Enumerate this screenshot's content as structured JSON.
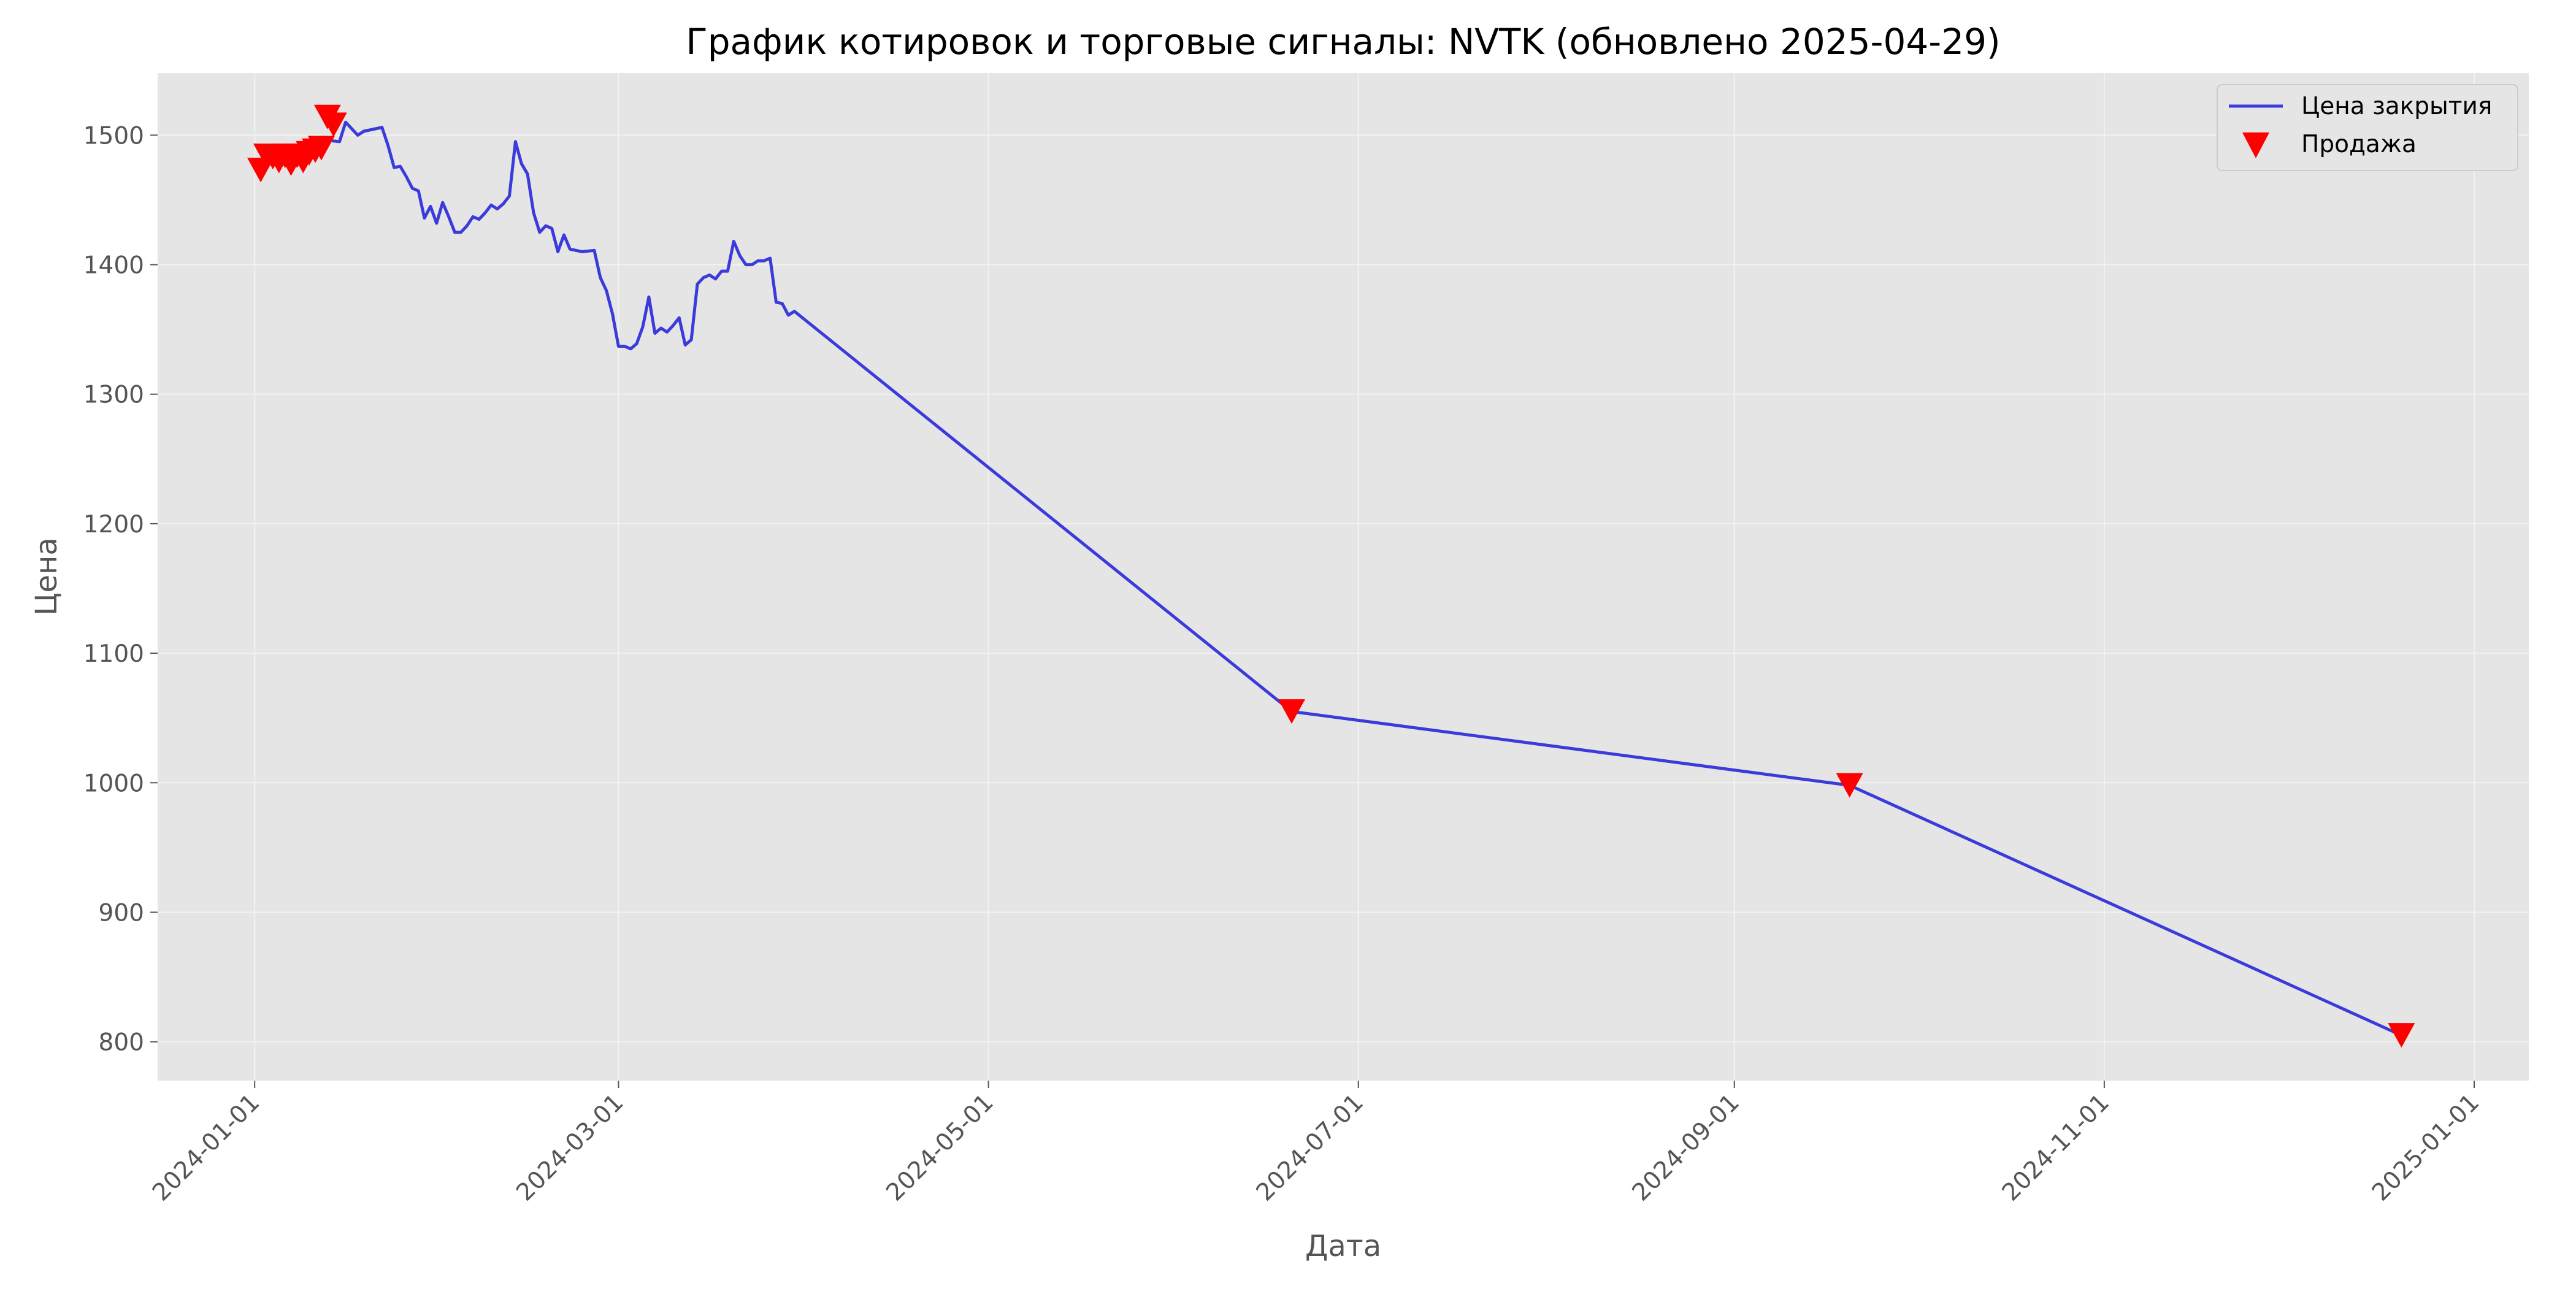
{
  "chart_data": {
    "type": "line",
    "title": "График котировок и торговые сигналы: NVTK (обновлено 2025-04-29)",
    "xlabel": "Дата",
    "ylabel": "Цена",
    "x_type": "date",
    "xlim": [
      "2023-12-16",
      "2025-01-10"
    ],
    "ylim": [
      770,
      1548
    ],
    "x_ticks": [
      "2024-01-01",
      "2024-03-01",
      "2024-05-01",
      "2024-07-01",
      "2024-09-01",
      "2024-11-01",
      "2025-01-01"
    ],
    "y_ticks": [
      800,
      900,
      1000,
      1100,
      1200,
      1300,
      1400,
      1500
    ],
    "grid": true,
    "legend_position": "top-right",
    "colors": {
      "line": "#3b3bdb",
      "marker": "#ff0000",
      "plot_bg": "#e5e5e5",
      "grid": "#f2f2f2"
    },
    "series": [
      {
        "name": "Цена закрытия",
        "kind": "line",
        "points": [
          [
            "2024-01-03",
            1480
          ],
          [
            "2024-01-04",
            1486
          ],
          [
            "2024-01-05",
            1483
          ],
          [
            "2024-01-08",
            1487
          ],
          [
            "2024-01-09",
            1482
          ],
          [
            "2024-01-10",
            1488
          ],
          [
            "2024-01-11",
            1484
          ],
          [
            "2024-01-12",
            1489
          ],
          [
            "2024-01-13",
            1496
          ],
          [
            "2024-01-15",
            1495
          ],
          [
            "2024-01-16",
            1510
          ],
          [
            "2024-01-17",
            1505
          ],
          [
            "2024-01-18",
            1500
          ],
          [
            "2024-01-19",
            1503
          ],
          [
            "2024-01-22",
            1506
          ],
          [
            "2024-01-23",
            1492
          ],
          [
            "2024-01-24",
            1475
          ],
          [
            "2024-01-25",
            1476
          ],
          [
            "2024-01-26",
            1468
          ],
          [
            "2024-01-27",
            1459
          ],
          [
            "2024-01-28",
            1457
          ],
          [
            "2024-01-29",
            1436
          ],
          [
            "2024-01-30",
            1445
          ],
          [
            "2024-01-31",
            1432
          ],
          [
            "2024-02-01",
            1448
          ],
          [
            "2024-02-02",
            1437
          ],
          [
            "2024-02-03",
            1425
          ],
          [
            "2024-02-04",
            1425
          ],
          [
            "2024-02-05",
            1430
          ],
          [
            "2024-02-06",
            1437
          ],
          [
            "2024-02-07",
            1435
          ],
          [
            "2024-02-08",
            1440
          ],
          [
            "2024-02-09",
            1446
          ],
          [
            "2024-02-10",
            1443
          ],
          [
            "2024-02-11",
            1447
          ],
          [
            "2024-02-12",
            1453
          ],
          [
            "2024-02-13",
            1495
          ],
          [
            "2024-02-14",
            1478
          ],
          [
            "2024-02-15",
            1470
          ],
          [
            "2024-02-16",
            1440
          ],
          [
            "2024-02-17",
            1425
          ],
          [
            "2024-02-18",
            1430
          ],
          [
            "2024-02-19",
            1428
          ],
          [
            "2024-02-20",
            1410
          ],
          [
            "2024-02-21",
            1423
          ],
          [
            "2024-02-22",
            1412
          ],
          [
            "2024-02-24",
            1410
          ],
          [
            "2024-02-26",
            1411
          ],
          [
            "2024-02-27",
            1390
          ],
          [
            "2024-02-28",
            1380
          ],
          [
            "2024-02-29",
            1362
          ],
          [
            "2024-03-01",
            1337
          ],
          [
            "2024-03-02",
            1337
          ],
          [
            "2024-03-03",
            1335
          ],
          [
            "2024-03-04",
            1339
          ],
          [
            "2024-03-05",
            1352
          ],
          [
            "2024-03-06",
            1375
          ],
          [
            "2024-03-07",
            1347
          ],
          [
            "2024-03-08",
            1351
          ],
          [
            "2024-03-09",
            1348
          ],
          [
            "2024-03-10",
            1353
          ],
          [
            "2024-03-11",
            1359
          ],
          [
            "2024-03-12",
            1338
          ],
          [
            "2024-03-13",
            1342
          ],
          [
            "2024-03-14",
            1385
          ],
          [
            "2024-03-15",
            1390
          ],
          [
            "2024-03-16",
            1392
          ],
          [
            "2024-03-17",
            1389
          ],
          [
            "2024-03-18",
            1395
          ],
          [
            "2024-03-19",
            1395
          ],
          [
            "2024-03-20",
            1418
          ],
          [
            "2024-03-21",
            1407
          ],
          [
            "2024-03-22",
            1400
          ],
          [
            "2024-03-23",
            1400
          ],
          [
            "2024-03-24",
            1403
          ],
          [
            "2024-03-25",
            1403
          ],
          [
            "2024-03-26",
            1405
          ],
          [
            "2024-03-27",
            1371
          ],
          [
            "2024-03-28",
            1370
          ],
          [
            "2024-03-29",
            1361
          ],
          [
            "2024-03-30",
            1364
          ],
          [
            "2024-06-20",
            1055
          ],
          [
            "2024-09-20",
            998
          ],
          [
            "2024-12-20",
            805
          ]
        ]
      },
      {
        "name": "Продажа",
        "kind": "marker",
        "points": [
          [
            "2024-01-02",
            1473
          ],
          [
            "2024-01-03",
            1484
          ],
          [
            "2024-01-04",
            1483
          ],
          [
            "2024-01-05",
            1480
          ],
          [
            "2024-01-06",
            1484
          ],
          [
            "2024-01-07",
            1478
          ],
          [
            "2024-01-08",
            1484
          ],
          [
            "2024-01-09",
            1480
          ],
          [
            "2024-01-10",
            1486
          ],
          [
            "2024-01-11",
            1488
          ],
          [
            "2024-01-12",
            1490
          ],
          [
            "2024-01-13",
            1514
          ],
          [
            "2024-01-14",
            1508
          ],
          [
            "2024-06-20",
            1055
          ],
          [
            "2024-09-20",
            998
          ],
          [
            "2024-12-20",
            805
          ]
        ]
      }
    ]
  }
}
